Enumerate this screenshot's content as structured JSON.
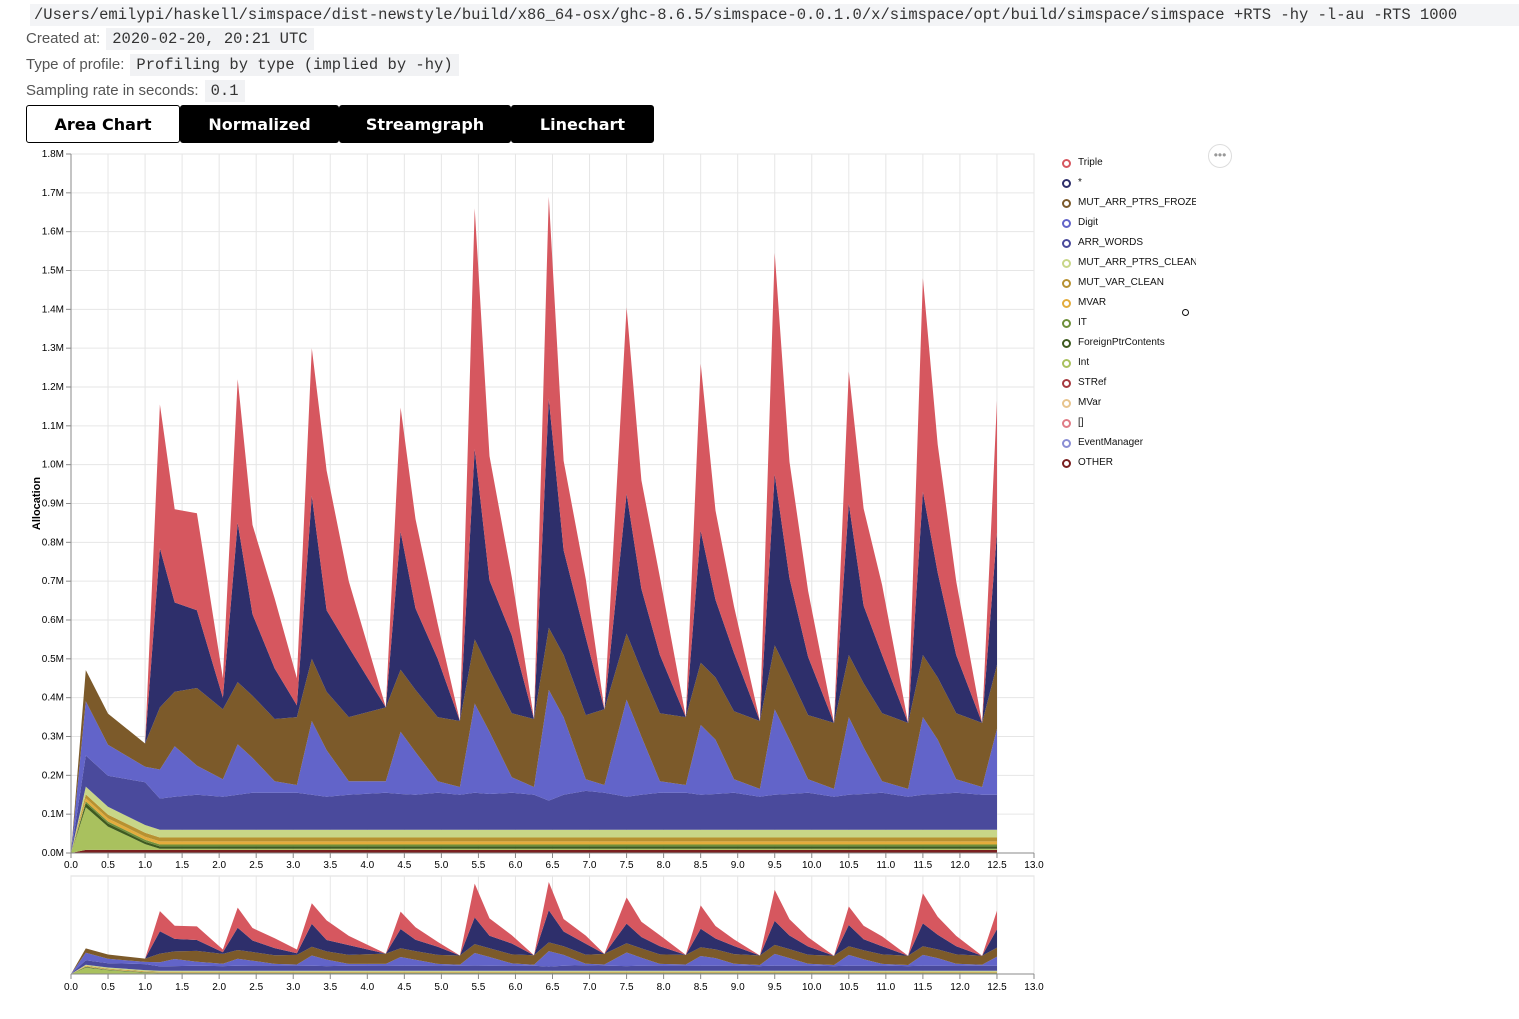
{
  "header": {
    "command": "/Users/emilypi/haskell/simspace/dist-newstyle/build/x86_64-osx/ghc-8.6.5/simspace-0.0.1.0/x/simspace/opt/build/simspace/simspace +RTS -hy -l-au -RTS 1000",
    "created_label": "Created at:",
    "created_value": "2020-02-20, 20:21 UTC",
    "profile_label": "Type of profile:",
    "profile_value": "Profiling by type (implied by -hy)",
    "sampling_label": "Sampling rate in seconds:",
    "sampling_value": "0.1"
  },
  "tabs": [
    {
      "label": "Area Chart",
      "active": true
    },
    {
      "label": "Normalized",
      "active": false
    },
    {
      "label": "Streamgraph",
      "active": false
    },
    {
      "label": "Linechart",
      "active": false
    }
  ],
  "menu_icon": "ellipsis-icon",
  "menu_label": "•••",
  "chart_data": {
    "type": "area",
    "stacked": true,
    "title": "",
    "xlabel": "",
    "ylabel": "Allocation",
    "xlim": [
      0,
      13
    ],
    "ylim": [
      0,
      1800000
    ],
    "x_ticks": [
      "0.0",
      "0.5",
      "1.0",
      "1.5",
      "2.0",
      "2.5",
      "3.0",
      "3.5",
      "4.0",
      "4.5",
      "5.0",
      "5.5",
      "6.0",
      "6.5",
      "7.0",
      "7.5",
      "8.0",
      "8.5",
      "9.0",
      "9.5",
      "10.0",
      "10.5",
      "11.0",
      "11.5",
      "12.0",
      "12.5",
      "13.0"
    ],
    "y_ticks": [
      "0.0M",
      "0.1M",
      "0.2M",
      "0.3M",
      "0.4M",
      "0.5M",
      "0.6M",
      "0.7M",
      "0.8M",
      "0.9M",
      "1.0M",
      "1.1M",
      "1.2M",
      "1.3M",
      "1.4M",
      "1.5M",
      "1.6M",
      "1.7M",
      "1.8M"
    ],
    "grid": true,
    "legend_position": "right",
    "has_overview_brush": true,
    "legend": [
      {
        "name": "Triple",
        "color": "#d6575f"
      },
      {
        "name": "*",
        "color": "#2e2f6b"
      },
      {
        "name": "MUT_ARR_PTRS_FROZE",
        "color": "#7c5a2a"
      },
      {
        "name": "Digit",
        "color": "#6264c9"
      },
      {
        "name": "ARR_WORDS",
        "color": "#4a4a9c"
      },
      {
        "name": "MUT_ARR_PTRS_CLEAN",
        "color": "#c8d688"
      },
      {
        "name": "MUT_VAR_CLEAN",
        "color": "#b79131"
      },
      {
        "name": "MVAR",
        "color": "#e3ac3c"
      },
      {
        "name": "IT",
        "color": "#6e8f3a"
      },
      {
        "name": "ForeignPtrContents",
        "color": "#3e5a1f"
      },
      {
        "name": "Int",
        "color": "#a9c15e"
      },
      {
        "name": "STRef",
        "color": "#a6393f"
      },
      {
        "name": "MVar",
        "color": "#e7c48d"
      },
      {
        "name": "[]",
        "color": "#e07c86"
      },
      {
        "name": "EventManager",
        "color": "#8a8ed4"
      },
      {
        "name": "OTHER",
        "color": "#7a2020"
      }
    ],
    "x": [
      0.0,
      0.2,
      0.5,
      1.0,
      1.2,
      1.4,
      1.7,
      2.05,
      2.25,
      2.45,
      2.75,
      3.05,
      3.25,
      3.45,
      3.75,
      4.25,
      4.45,
      4.65,
      4.95,
      5.25,
      5.45,
      5.65,
      5.95,
      6.25,
      6.45,
      6.65,
      6.95,
      7.2,
      7.5,
      7.7,
      7.95,
      8.3,
      8.5,
      8.7,
      8.95,
      9.3,
      9.5,
      9.7,
      9.95,
      10.3,
      10.5,
      10.7,
      10.95,
      11.3,
      11.5,
      11.7,
      11.95,
      12.3,
      12.5
    ],
    "series": [
      {
        "name": "OTHER",
        "values": [
          0,
          8000,
          8000,
          8000,
          8000,
          8000,
          8000,
          8000,
          8000,
          8000,
          8000,
          8000,
          8000,
          8000,
          8000,
          8000,
          8000,
          8000,
          8000,
          8000,
          8000,
          8000,
          8000,
          8000,
          8000,
          8000,
          8000,
          8000,
          8000,
          8000,
          8000,
          8000,
          8000,
          8000,
          8000,
          8000,
          8000,
          8000,
          8000,
          8000,
          8000,
          8000,
          8000,
          8000,
          8000,
          8000,
          8000,
          8000,
          8000
        ]
      },
      {
        "name": "Int",
        "values": [
          0,
          110000,
          60000,
          15000,
          3000,
          3000,
          3000,
          3000,
          3000,
          3000,
          3000,
          3000,
          3000,
          3000,
          3000,
          3000,
          3000,
          3000,
          3000,
          3000,
          3000,
          3000,
          3000,
          3000,
          3000,
          3000,
          3000,
          3000,
          3000,
          3000,
          3000,
          3000,
          3000,
          3000,
          3000,
          3000,
          3000,
          3000,
          3000,
          3000,
          3000,
          3000,
          3000,
          3000,
          3000,
          3000,
          3000,
          3000,
          3000
        ]
      },
      {
        "name": "ForeignPtrContents",
        "values": [
          0,
          10000,
          8000,
          6000,
          6000,
          6000,
          6000,
          6000,
          6000,
          6000,
          6000,
          6000,
          6000,
          6000,
          6000,
          6000,
          6000,
          6000,
          6000,
          6000,
          6000,
          6000,
          6000,
          6000,
          6000,
          6000,
          6000,
          6000,
          6000,
          6000,
          6000,
          6000,
          6000,
          6000,
          6000,
          6000,
          6000,
          6000,
          6000,
          6000,
          6000,
          6000,
          6000,
          6000,
          6000,
          6000,
          6000,
          6000,
          6000
        ]
      },
      {
        "name": "IT",
        "values": [
          0,
          5000,
          5000,
          5000,
          5000,
          5000,
          5000,
          5000,
          5000,
          5000,
          5000,
          5000,
          5000,
          5000,
          5000,
          5000,
          5000,
          5000,
          5000,
          5000,
          5000,
          5000,
          5000,
          5000,
          5000,
          5000,
          5000,
          5000,
          5000,
          5000,
          5000,
          5000,
          5000,
          5000,
          5000,
          5000,
          5000,
          5000,
          5000,
          5000,
          5000,
          5000,
          5000,
          5000,
          5000,
          5000,
          5000,
          5000,
          5000
        ]
      },
      {
        "name": "MVAR",
        "values": [
          0,
          8000,
          8000,
          8000,
          8000,
          8000,
          8000,
          8000,
          8000,
          8000,
          8000,
          8000,
          8000,
          8000,
          8000,
          8000,
          8000,
          8000,
          8000,
          8000,
          8000,
          8000,
          8000,
          8000,
          8000,
          8000,
          8000,
          8000,
          8000,
          8000,
          8000,
          8000,
          8000,
          8000,
          8000,
          8000,
          8000,
          8000,
          8000,
          8000,
          8000,
          8000,
          8000,
          8000,
          8000,
          8000,
          8000,
          8000,
          8000
        ]
      },
      {
        "name": "MUT_VAR_CLEAN",
        "values": [
          0,
          10000,
          10000,
          10000,
          10000,
          10000,
          10000,
          10000,
          10000,
          10000,
          10000,
          10000,
          10000,
          10000,
          10000,
          10000,
          10000,
          10000,
          10000,
          10000,
          10000,
          10000,
          10000,
          10000,
          10000,
          10000,
          10000,
          10000,
          10000,
          10000,
          10000,
          10000,
          10000,
          10000,
          10000,
          10000,
          10000,
          10000,
          10000,
          10000,
          10000,
          10000,
          10000,
          10000,
          10000,
          10000,
          10000,
          10000,
          10000
        ]
      },
      {
        "name": "MUT_ARR_PTRS_CLEAN",
        "values": [
          0,
          20000,
          20000,
          20000,
          20000,
          20000,
          20000,
          20000,
          20000,
          20000,
          20000,
          20000,
          20000,
          20000,
          20000,
          20000,
          20000,
          20000,
          20000,
          20000,
          20000,
          20000,
          20000,
          20000,
          20000,
          20000,
          20000,
          20000,
          20000,
          20000,
          20000,
          20000,
          20000,
          20000,
          20000,
          20000,
          20000,
          20000,
          20000,
          20000,
          20000,
          20000,
          20000,
          20000,
          20000,
          20000,
          20000,
          20000,
          20000
        ]
      },
      {
        "name": "ARR_WORDS",
        "values": [
          0,
          80000,
          80000,
          110000,
          80000,
          85000,
          90000,
          85000,
          90000,
          95000,
          95000,
          95000,
          90000,
          85000,
          90000,
          95000,
          92000,
          90000,
          95000,
          90000,
          95000,
          92000,
          95000,
          90000,
          75000,
          90000,
          100000,
          95000,
          85000,
          90000,
          95000,
          95000,
          90000,
          92000,
          95000,
          85000,
          90000,
          92000,
          95000,
          85000,
          90000,
          92000,
          95000,
          85000,
          90000,
          92000,
          95000,
          90000,
          90000
        ]
      },
      {
        "name": "Digit",
        "values": [
          0,
          140000,
          80000,
          40000,
          75000,
          130000,
          75000,
          45000,
          130000,
          90000,
          30000,
          20000,
          190000,
          120000,
          35000,
          30000,
          160000,
          110000,
          30000,
          20000,
          230000,
          160000,
          40000,
          20000,
          285000,
          200000,
          30000,
          20000,
          250000,
          150000,
          30000,
          20000,
          180000,
          140000,
          35000,
          20000,
          220000,
          140000,
          35000,
          20000,
          200000,
          120000,
          30000,
          20000,
          200000,
          140000,
          35000,
          20000,
          170000
        ]
      },
      {
        "name": "MUT_ARR_PTRS_FROZE",
        "values": [
          0,
          80000,
          80000,
          60000,
          160000,
          140000,
          200000,
          180000,
          160000,
          160000,
          160000,
          175000,
          160000,
          150000,
          165000,
          190000,
          160000,
          160000,
          165000,
          170000,
          165000,
          160000,
          165000,
          175000,
          160000,
          160000,
          165000,
          195000,
          170000,
          170000,
          175000,
          175000,
          160000,
          160000,
          175000,
          175000,
          165000,
          165000,
          165000,
          170000,
          160000,
          165000,
          175000,
          170000,
          160000,
          160000,
          170000,
          165000,
          165000
        ]
      },
      {
        "name": "*",
        "values": [
          0,
          0,
          0,
          0,
          410000,
          230000,
          200000,
          30000,
          410000,
          210000,
          130000,
          30000,
          420000,
          210000,
          180000,
          0,
          355000,
          210000,
          150000,
          0,
          490000,
          230000,
          200000,
          0,
          590000,
          270000,
          200000,
          0,
          360000,
          210000,
          150000,
          0,
          340000,
          200000,
          150000,
          0,
          440000,
          250000,
          150000,
          0,
          390000,
          200000,
          150000,
          0,
          420000,
          270000,
          150000,
          0,
          340000
        ]
      },
      {
        "name": "Triple",
        "values": [
          0,
          0,
          0,
          0,
          370000,
          240000,
          250000,
          50000,
          370000,
          230000,
          180000,
          70000,
          380000,
          360000,
          170000,
          0,
          320000,
          230000,
          90000,
          0,
          620000,
          320000,
          150000,
          0,
          520000,
          230000,
          150000,
          0,
          480000,
          280000,
          200000,
          0,
          430000,
          230000,
          120000,
          0,
          570000,
          300000,
          170000,
          0,
          340000,
          250000,
          180000,
          0,
          550000,
          330000,
          190000,
          0,
          340000
        ]
      }
    ]
  }
}
